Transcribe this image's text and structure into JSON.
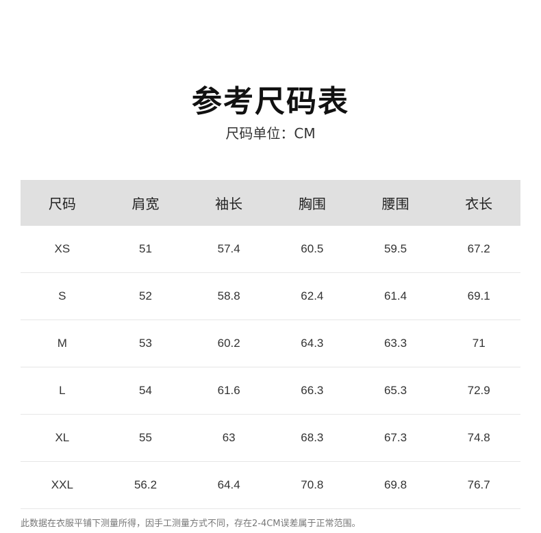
{
  "title": "参考尺码表",
  "subtitle": "尺码单位：CM",
  "table": {
    "headers": [
      "尺码",
      "肩宽",
      "袖长",
      "胸围",
      "腰围",
      "衣长"
    ],
    "rows": [
      [
        "XS",
        "51",
        "57.4",
        "60.5",
        "59.5",
        "67.2"
      ],
      [
        "S",
        "52",
        "58.8",
        "62.4",
        "61.4",
        "69.1"
      ],
      [
        "M",
        "53",
        "60.2",
        "64.3",
        "63.3",
        "71"
      ],
      [
        "L",
        "54",
        "61.6",
        "66.3",
        "65.3",
        "72.9"
      ],
      [
        "XL",
        "55",
        "63",
        "68.3",
        "67.3",
        "74.8"
      ],
      [
        "XXL",
        "56.2",
        "64.4",
        "70.8",
        "69.8",
        "76.7"
      ]
    ]
  },
  "note": "此数据在衣服平铺下测量所得，因手工测量方式不同，存在2-4CM误差属于正常范围。"
}
